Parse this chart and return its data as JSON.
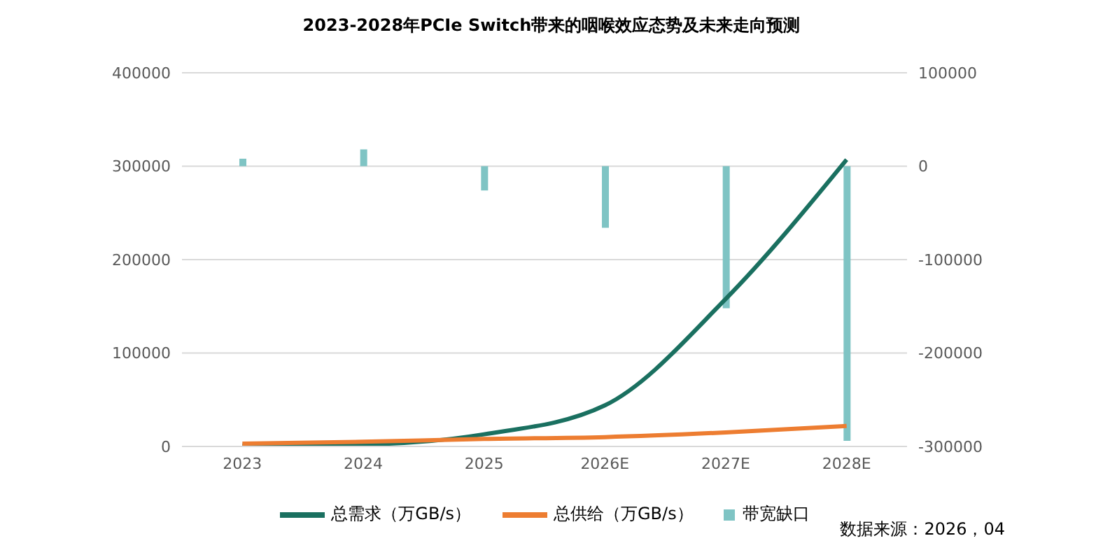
{
  "chart_data": {
    "type": "line",
    "title": "2023-2028年PCIe Switch带来的咽喉效应态势及未来走向预测",
    "categories": [
      "2023",
      "2024",
      "2025",
      "2026E",
      "2027E",
      "2028E"
    ],
    "series": [
      {
        "name": "总需求（万GB/s）",
        "color": "#1a7060",
        "values": [
          1000,
          2000,
          13000,
          44000,
          158000,
          307000
        ]
      },
      {
        "name": "总供给（万GB/s）",
        "color": "#ed7d31",
        "values": [
          3000,
          5000,
          8000,
          10000,
          15000,
          22000
        ]
      },
      {
        "name": "带宽缺口",
        "type": "bar",
        "axis": "y2",
        "color": "#7fc4c4",
        "values": [
          8000,
          18000,
          -26000,
          -66000,
          -152000,
          -294000
        ]
      }
    ],
    "ylim": [
      0,
      400000
    ],
    "yticks": [
      0,
      100000,
      200000,
      300000,
      400000
    ],
    "y2lim": [
      -300000,
      100000
    ],
    "y2ticks": [
      -300000,
      -200000,
      -100000,
      0,
      100000
    ],
    "grid": "y",
    "legend": "bottom",
    "marker": "none",
    "line_style": "solid",
    "annotations": [
      "数据来源：2026，04"
    ]
  }
}
